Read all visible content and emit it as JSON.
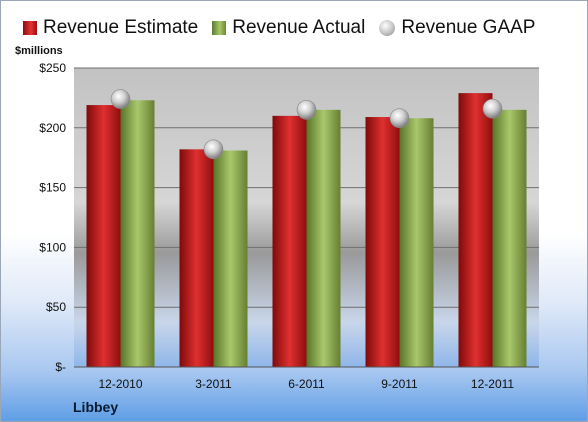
{
  "chart_data": {
    "type": "bar",
    "unit_label": "$millions",
    "company": "Libbey",
    "categories": [
      "12-2010",
      "3-2011",
      "6-2011",
      "9-2011",
      "12-2011"
    ],
    "series": [
      {
        "name": "Revenue Estimate",
        "kind": "bar",
        "color": "#c41e1e",
        "values": [
          219,
          182,
          210,
          209,
          229
        ]
      },
      {
        "name": "Revenue Actual",
        "kind": "bar",
        "color": "#8db04f",
        "values": [
          223,
          181,
          215,
          208,
          215
        ]
      },
      {
        "name": "Revenue GAAP",
        "kind": "marker",
        "color": "#b8b8b8",
        "values": [
          224,
          182,
          215,
          208,
          216
        ]
      }
    ],
    "ylim": [
      0,
      250
    ],
    "yticks": [
      0,
      50,
      100,
      150,
      200,
      250
    ],
    "ytick_labels": [
      "$-",
      "$50",
      "$100",
      "$150",
      "$200",
      "$250"
    ],
    "grid": true,
    "legend_position": "top"
  }
}
